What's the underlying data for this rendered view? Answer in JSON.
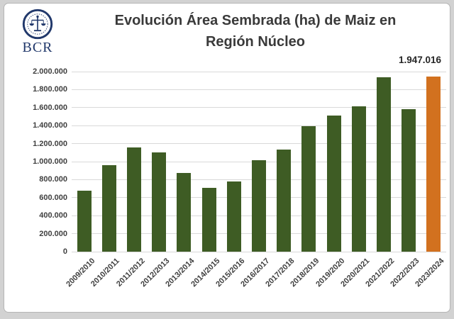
{
  "logo": {
    "text": "BCR",
    "emblem_icon": "scales-emblem-icon",
    "color": "#21386b"
  },
  "title": "Evolución Área Sembrada (ha) de Maiz en Región Núcleo",
  "annotation": {
    "label": "1.947.016"
  },
  "colors": {
    "bar": "#3e5c24",
    "highlight": "#d2711f",
    "gridline": "#d9d9d9",
    "title_text": "#3a3a3a",
    "axis_text": "#3f3f3f",
    "annotation_text": "#262626",
    "panel_border": "#b5b5b5",
    "outer_background": "#d2d2d2"
  },
  "chart_data": {
    "type": "bar",
    "title": "Evolución Área Sembrada (ha) de Maiz en Región Núcleo",
    "xlabel": "",
    "ylabel": "",
    "categories": [
      "2009/2010",
      "2010/2011",
      "2011/2012",
      "2012/2013",
      "2013/2014",
      "2014/2015",
      "2015/2016",
      "2016/2017",
      "2017/2018",
      "2018/2019",
      "2019/2020",
      "2020/2021",
      "2021/2022",
      "2022/2023",
      "2023/2024"
    ],
    "values": [
      680000,
      960000,
      1160000,
      1105000,
      875000,
      705000,
      780000,
      1015000,
      1135000,
      1395000,
      1510000,
      1615000,
      1940000,
      1580000,
      1947016
    ],
    "highlight_index": 14,
    "data_label": {
      "index": 14,
      "text": "1.947.016"
    },
    "ylim": [
      0,
      2000000
    ],
    "ytick_step": 200000,
    "ytick_labels": [
      "0",
      "200.000",
      "400.000",
      "600.000",
      "800.000",
      "1.000.000",
      "1.200.000",
      "1.400.000",
      "1.600.000",
      "1.800.000",
      "2.000.000"
    ],
    "grid": true,
    "legend_position": "none"
  }
}
